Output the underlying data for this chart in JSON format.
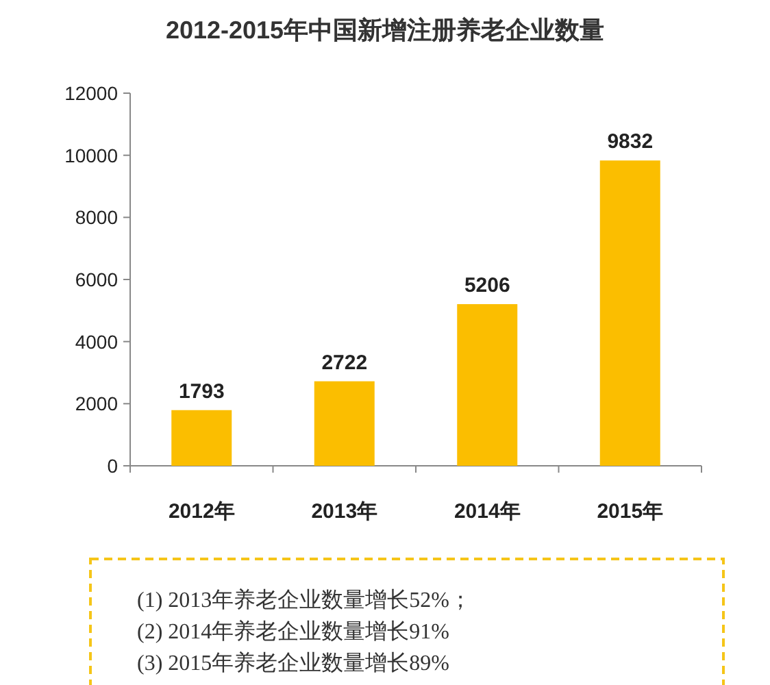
{
  "chart_data": {
    "type": "bar",
    "title": "2012-2015年中国新增注册养老企业数量",
    "categories": [
      "2012年",
      "2013年",
      "2014年",
      "2015年"
    ],
    "values": [
      1793,
      2722,
      5206,
      9832
    ],
    "color": "#fbbe00",
    "ylim": [
      0,
      12000
    ],
    "yticks": [
      0,
      2000,
      4000,
      6000,
      8000,
      10000,
      12000
    ],
    "data_labels": true,
    "annotations": [
      "(1)  2013年养老企业数量增长52%；",
      "(2)  2014年养老企业数量增长91%",
      "(3)  2015年养老企业数量增长89%"
    ]
  }
}
